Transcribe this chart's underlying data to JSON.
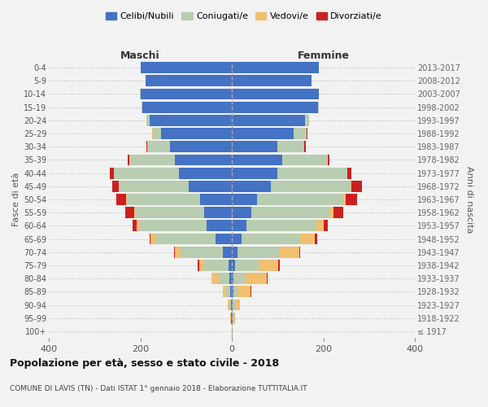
{
  "age_groups": [
    "100+",
    "95-99",
    "90-94",
    "85-89",
    "80-84",
    "75-79",
    "70-74",
    "65-69",
    "60-64",
    "55-59",
    "50-54",
    "45-49",
    "40-44",
    "35-39",
    "30-34",
    "25-29",
    "20-24",
    "15-19",
    "10-14",
    "5-9",
    "0-4"
  ],
  "birth_years": [
    "≤ 1917",
    "1918-1922",
    "1923-1927",
    "1928-1932",
    "1933-1937",
    "1938-1942",
    "1943-1947",
    "1948-1952",
    "1953-1957",
    "1958-1962",
    "1963-1967",
    "1968-1972",
    "1973-1977",
    "1978-1982",
    "1983-1987",
    "1988-1992",
    "1993-1997",
    "1998-2002",
    "2003-2007",
    "2008-2012",
    "2013-2017"
  ],
  "colors": {
    "celibe": "#4472C4",
    "coniugato": "#B8CCB0",
    "vedovo": "#F0C070",
    "divorziato": "#CC2020"
  },
  "maschi": {
    "celibe": [
      0,
      1,
      2,
      4,
      6,
      8,
      20,
      35,
      55,
      60,
      70,
      95,
      115,
      125,
      135,
      155,
      180,
      195,
      200,
      188,
      200
    ],
    "coniugato": [
      0,
      1,
      3,
      8,
      22,
      52,
      92,
      130,
      148,
      152,
      160,
      152,
      142,
      98,
      50,
      18,
      7,
      2,
      1,
      0,
      0
    ],
    "vedovo": [
      0,
      1,
      4,
      8,
      16,
      12,
      13,
      12,
      5,
      2,
      1,
      1,
      1,
      1,
      0,
      1,
      0,
      0,
      0,
      0,
      0
    ],
    "divorziato": [
      0,
      0,
      0,
      0,
      1,
      2,
      2,
      3,
      9,
      19,
      21,
      13,
      9,
      3,
      2,
      1,
      0,
      0,
      0,
      0,
      0
    ]
  },
  "femmine": {
    "nubile": [
      0,
      1,
      2,
      3,
      4,
      7,
      12,
      22,
      32,
      42,
      55,
      85,
      100,
      110,
      100,
      135,
      160,
      188,
      190,
      175,
      190
    ],
    "coniugata": [
      0,
      2,
      5,
      10,
      24,
      52,
      93,
      128,
      152,
      172,
      190,
      175,
      152,
      98,
      58,
      28,
      9,
      3,
      1,
      0,
      0
    ],
    "vedova": [
      1,
      4,
      10,
      28,
      48,
      42,
      42,
      32,
      16,
      8,
      3,
      2,
      1,
      1,
      1,
      1,
      0,
      0,
      0,
      0,
      0
    ],
    "divorziata": [
      0,
      0,
      0,
      1,
      2,
      3,
      3,
      5,
      9,
      21,
      26,
      23,
      9,
      4,
      2,
      2,
      0,
      0,
      0,
      0,
      0
    ]
  },
  "xlim": 400,
  "title": "Popolazione per età, sesso e stato civile - 2018",
  "subtitle": "COMUNE DI LAVIS (TN) - Dati ISTAT 1° gennaio 2018 - Elaborazione TUTTITALIA.IT",
  "xlabel_left": "Maschi",
  "xlabel_right": "Femmine",
  "ylabel_left": "Fasce di età",
  "ylabel_right": "Anni di nascita",
  "legend_labels": [
    "Celibi/Nubili",
    "Coniugati/e",
    "Vedovi/e",
    "Divorziati/e"
  ],
  "bg_color": "#F2F2F2",
  "grid_color": "#CCCCCC"
}
